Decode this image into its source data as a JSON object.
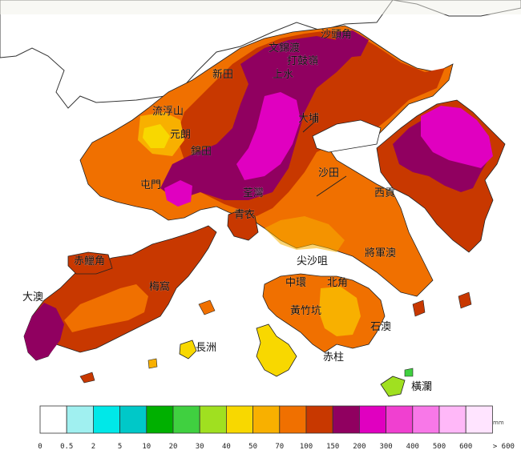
{
  "map": {
    "unit": "mm",
    "place_names": {
      "sha_tau_kok": "沙頭角",
      "man_kam_to": "文錦渡",
      "ta_kwu_ling": "打鼓嶺",
      "sheung_shui": "上水",
      "san_tin": "新田",
      "lau_fau_shan": "流浮山",
      "yuen_long": "元朗",
      "kam_tin": "錦田",
      "tai_po": "大埔",
      "tuen_mun": "屯門",
      "tsuen_wan": "荃灣",
      "sha_tin": "沙田",
      "sai_kung": "西貢",
      "tsing_yi": "青衣",
      "chek_lap_kok": "赤鱲角",
      "tai_o": "大澳",
      "mui_wo": "梅窩",
      "tsim_sha_tsui": "尖沙咀",
      "tseung_kwan_o": "將軍澳",
      "central": "中環",
      "north_point": "北角",
      "wong_chuk_hang": "黃竹坑",
      "shek_o": "石澳",
      "stanley": "赤柱",
      "cheung_chau": "長洲",
      "waglan": "橫瀾"
    }
  },
  "legend": {
    "colors": [
      "#ffffff",
      "#a0f0f0",
      "#00e8e8",
      "#00c8c8",
      "#00b000",
      "#40d040",
      "#a0e020",
      "#f8d800",
      "#f8b000",
      "#f07000",
      "#c83800",
      "#900060",
      "#e000c0",
      "#f040d0",
      "#f878e8",
      "#ffb8f8",
      "#ffe4ff"
    ],
    "labels": [
      "0",
      "0.5",
      "2",
      "5",
      "10",
      "20",
      "30",
      "40",
      "50",
      "70",
      "100",
      "150",
      "200",
      "300",
      "400",
      "500",
      "600",
      "> 600"
    ]
  }
}
